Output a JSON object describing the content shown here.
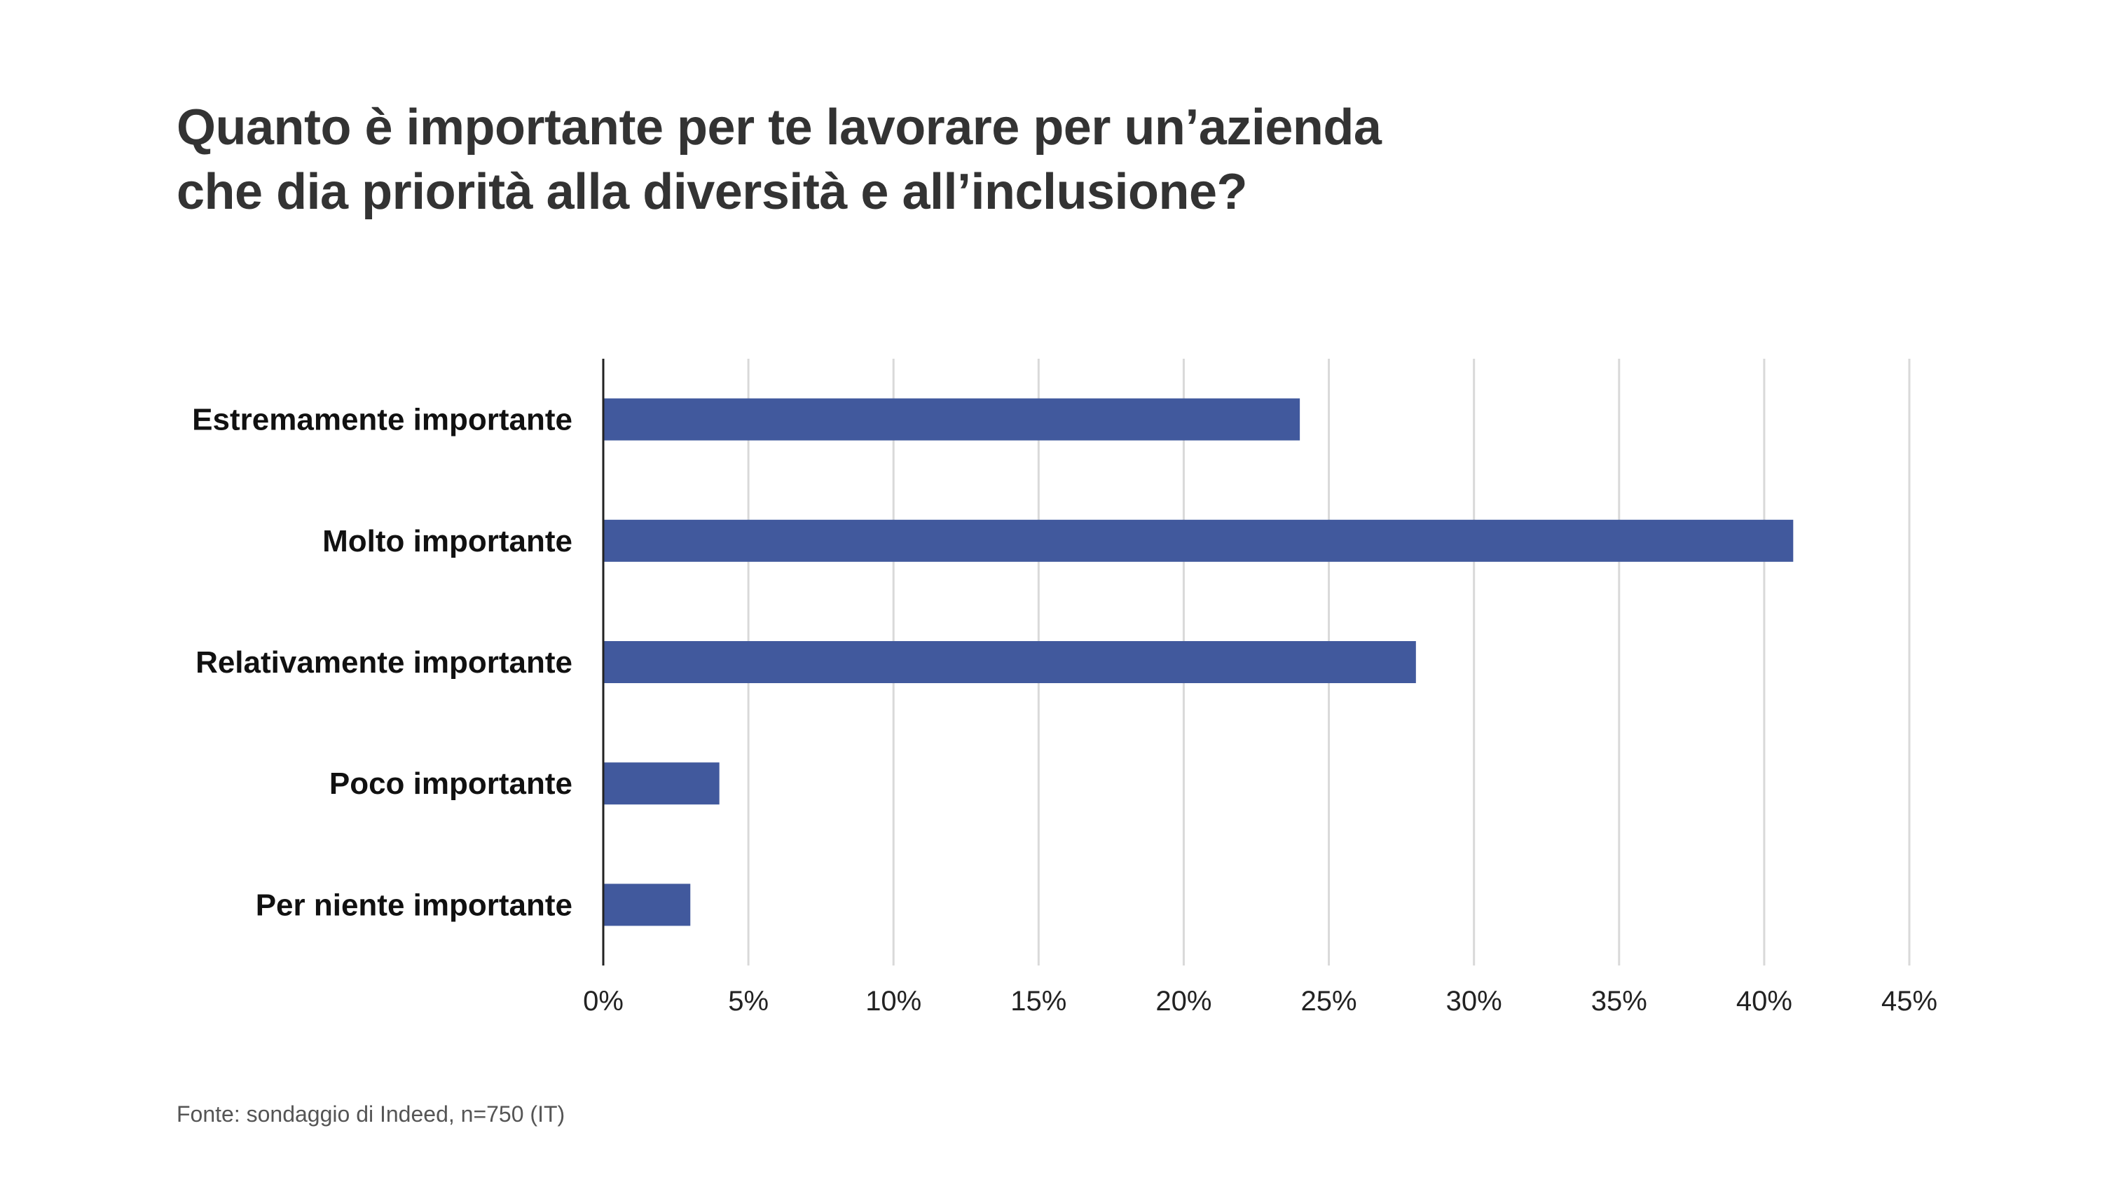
{
  "chart_data": {
    "type": "bar",
    "orientation": "horizontal",
    "title_lines": [
      "Quanto è importante per te lavorare per un’azienda",
      "che dia priorità alla diversità e all’inclusione?"
    ],
    "categories": [
      "Estremamente importante",
      "Molto importante",
      "Relativamente importante",
      "Poco importante",
      "Per niente importante"
    ],
    "values": [
      24,
      41,
      28,
      4,
      3
    ],
    "xlim": [
      0,
      45
    ],
    "x_ticks": [
      0,
      5,
      10,
      15,
      20,
      25,
      30,
      35,
      40,
      45
    ],
    "x_tick_labels": [
      "0%",
      "5%",
      "10%",
      "15%",
      "20%",
      "25%",
      "30%",
      "35%",
      "40%",
      "45%"
    ],
    "grid": "vertical",
    "legend": "none",
    "bar_color": "#41599d",
    "grid_color": "#d9d9d9",
    "axis_color": "#222222"
  },
  "source": "Fonte: sondaggio di Indeed, n=750 (IT)"
}
